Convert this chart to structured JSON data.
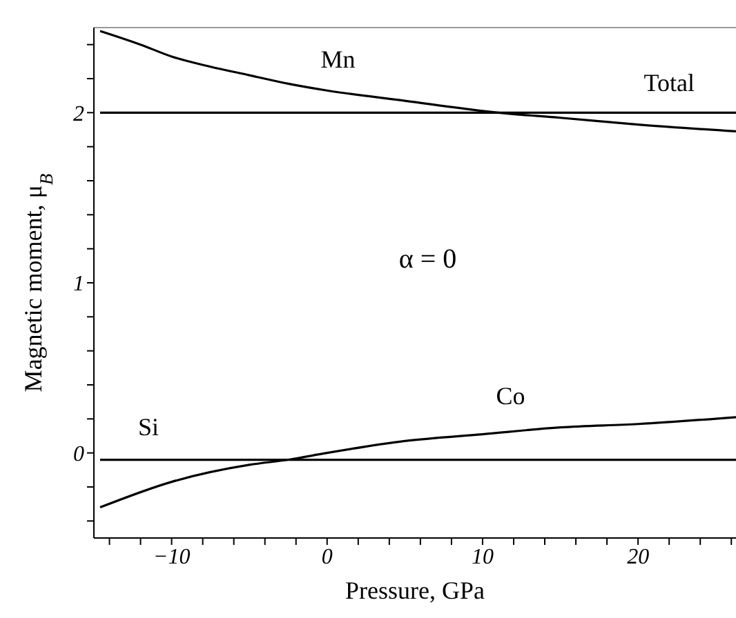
{
  "chart_data": {
    "type": "line",
    "xlabel": "Pressure, GPa",
    "ylabel": "Magnetic moment, μ$_{B}$",
    "xlim": [
      -15,
      26.3
    ],
    "ylim": [
      -0.5,
      2.5
    ],
    "xticks": [
      {
        "value": -14,
        "label": null
      },
      {
        "value": -12,
        "label": null
      },
      -10,
      {
        "value": -8,
        "label": null
      },
      {
        "value": -6,
        "label": null
      },
      {
        "value": -4,
        "label": null
      },
      {
        "value": -2,
        "label": null
      },
      0,
      {
        "value": 2,
        "label": null
      },
      {
        "value": 4,
        "label": null
      },
      {
        "value": 6,
        "label": null
      },
      {
        "value": 8,
        "label": null
      },
      10,
      {
        "value": 12,
        "label": null
      },
      {
        "value": 14,
        "label": null
      },
      {
        "value": 16,
        "label": null
      },
      {
        "value": 18,
        "label": null
      },
      20,
      {
        "value": 22,
        "label": null
      },
      {
        "value": 24,
        "label": null
      },
      {
        "value": 26,
        "label": null
      }
    ],
    "yticks": [
      {
        "value": -0.4,
        "label": null
      },
      {
        "value": -0.2,
        "label": null
      },
      0,
      {
        "value": 0.2,
        "label": null
      },
      {
        "value": 0.4,
        "label": null
      },
      {
        "value": 0.6,
        "label": null
      },
      {
        "value": 0.8,
        "label": null
      },
      1,
      {
        "value": 1.2,
        "label": null
      },
      {
        "value": 1.4,
        "label": null
      },
      {
        "value": 1.6,
        "label": null
      },
      {
        "value": 1.8,
        "label": null
      },
      2,
      {
        "value": 2.2,
        "label": null
      },
      {
        "value": 2.4,
        "label": null
      }
    ],
    "grid": false,
    "marker": "none",
    "line_style": "solid",
    "series": [
      {
        "name": "Mn",
        "color": "#000000",
        "x": [
          -14.6,
          -12,
          -10,
          -7.5,
          -5,
          -2.5,
          0,
          5,
          10,
          11,
          15,
          20,
          26.3
        ],
        "values": [
          2.48,
          2.4,
          2.33,
          2.27,
          2.22,
          2.17,
          2.13,
          2.07,
          2.01,
          2.0,
          1.97,
          1.93,
          1.89
        ]
      },
      {
        "name": "Total",
        "color": "#000000",
        "x": [
          -14.6,
          26.3
        ],
        "values": [
          2.0,
          2.0
        ]
      },
      {
        "name": "Si",
        "color": "#000000",
        "x": [
          -14.6,
          26.3
        ],
        "values": [
          -0.04,
          -0.04
        ]
      },
      {
        "name": "Co",
        "color": "#000000",
        "x": [
          -14.6,
          -10,
          -5,
          -2.5,
          0,
          5,
          10,
          15,
          20,
          26.3
        ],
        "values": [
          -0.32,
          -0.17,
          -0.07,
          -0.04,
          0.0,
          0.07,
          0.11,
          0.15,
          0.17,
          0.21
        ]
      }
    ],
    "annotations": [
      "α = 0"
    ]
  }
}
